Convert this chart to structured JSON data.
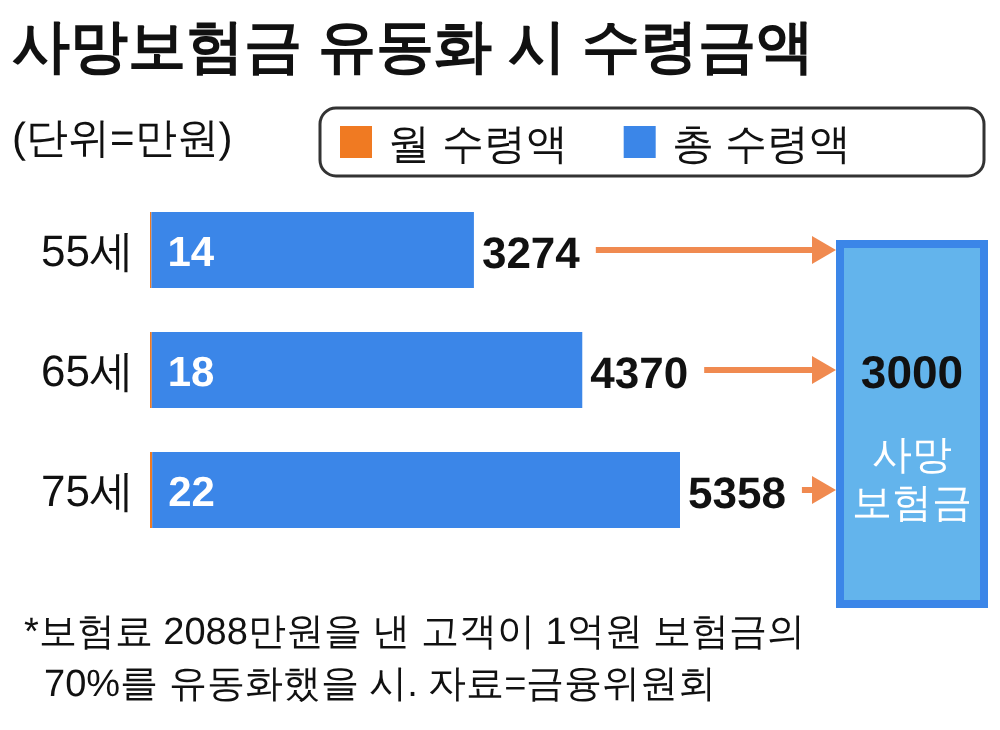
{
  "chart_data": {
    "type": "bar",
    "orientation": "horizontal",
    "stacked": true,
    "title": "사망보험금 유동화 시 수령금액",
    "subtitle": "(단위=만원)",
    "categories": [
      "55세",
      "65세",
      "75세"
    ],
    "series": [
      {
        "name": "월 수령액",
        "color": "#f07a22",
        "values": [
          14,
          18,
          22
        ]
      },
      {
        "name": "총 수령액",
        "color": "#3b86e8",
        "values": [
          3274,
          4370,
          5358
        ]
      }
    ],
    "data_labels": true,
    "legend": "top right",
    "annotations": [
      "3000",
      "사망 보험금",
      "*보험료 2088만원을 낸 고객이 1억원 보험금의 70%를 유동화했을 시. 자료=금융위원회"
    ]
  }
}
